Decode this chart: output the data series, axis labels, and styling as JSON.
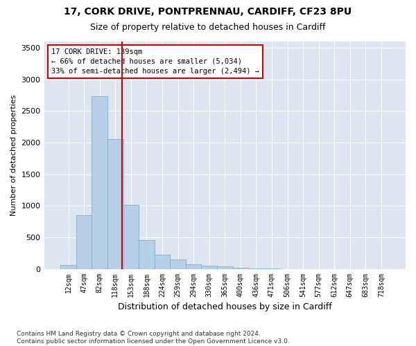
{
  "title_line1": "17, CORK DRIVE, PONTPRENNAU, CARDIFF, CF23 8PU",
  "title_line2": "Size of property relative to detached houses in Cardiff",
  "xlabel": "Distribution of detached houses by size in Cardiff",
  "ylabel": "Number of detached properties",
  "footer_line1": "Contains HM Land Registry data © Crown copyright and database right 2024.",
  "footer_line2": "Contains public sector information licensed under the Open Government Licence v3.0.",
  "bar_labels": [
    "12sqm",
    "47sqm",
    "82sqm",
    "118sqm",
    "153sqm",
    "188sqm",
    "224sqm",
    "259sqm",
    "294sqm",
    "330sqm",
    "365sqm",
    "400sqm",
    "436sqm",
    "471sqm",
    "506sqm",
    "541sqm",
    "577sqm",
    "612sqm",
    "647sqm",
    "683sqm",
    "718sqm"
  ],
  "bar_values": [
    60,
    850,
    2730,
    2060,
    1010,
    455,
    230,
    145,
    75,
    55,
    35,
    20,
    10,
    5,
    0,
    0,
    0,
    0,
    0,
    0,
    0
  ],
  "bar_color": "#b8cfe8",
  "bar_edge_color": "#7aafd4",
  "annotation_title": "17 CORK DRIVE: 139sqm",
  "annotation_line1": "← 66% of detached houses are smaller (5,034)",
  "annotation_line2": "33% of semi-detached houses are larger (2,494) →",
  "annotation_box_color": "#ffffff",
  "annotation_box_edge_color": "#cc0000",
  "vline_color": "#cc0000",
  "vline_x": 3.45,
  "ylim": [
    0,
    3600
  ],
  "yticks": [
    0,
    500,
    1000,
    1500,
    2000,
    2500,
    3000,
    3500
  ],
  "plot_bg_color": "#dde5f0",
  "fig_bg_color": "#ffffff",
  "title1_fontsize": 10,
  "title2_fontsize": 9,
  "xlabel_fontsize": 9,
  "ylabel_fontsize": 8,
  "annot_fontsize": 7.5,
  "tick_fontsize": 7,
  "footer_fontsize": 6.5
}
